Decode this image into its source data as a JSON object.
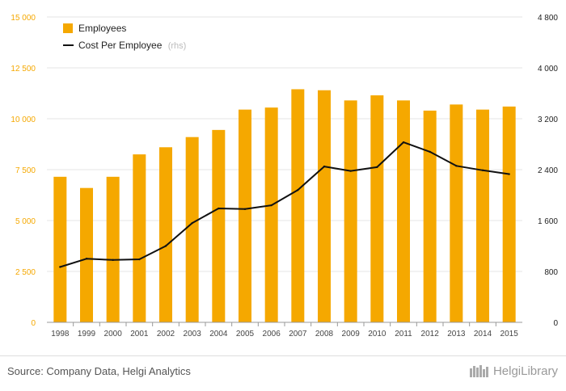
{
  "chart_data": {
    "type": "bar",
    "categories": [
      "1998",
      "1999",
      "2000",
      "2001",
      "2002",
      "2003",
      "2004",
      "2005",
      "2006",
      "2007",
      "2008",
      "2009",
      "2010",
      "2011",
      "2012",
      "2013",
      "2014",
      "2015"
    ],
    "series": [
      {
        "name": "Employees",
        "type": "bar",
        "axis": "left",
        "color": "#f5a800",
        "values": [
          7150,
          6600,
          7150,
          8250,
          8600,
          9100,
          9450,
          10450,
          10550,
          11450,
          11400,
          10900,
          11150,
          10900,
          10400,
          10700,
          10450,
          10600
        ]
      },
      {
        "name": "Cost Per Employee",
        "type": "line",
        "axis": "right",
        "color": "#111111",
        "values": [
          870,
          1000,
          980,
          990,
          1200,
          1560,
          1790,
          1780,
          1840,
          2080,
          2450,
          2380,
          2440,
          2830,
          2680,
          2460,
          2390,
          2330
        ]
      }
    ],
    "legend_suffix": "(rhs)",
    "left_axis": {
      "min": 0,
      "max": 15000,
      "ticks": [
        0,
        2500,
        5000,
        7500,
        10000,
        12500,
        15000
      ],
      "tick_labels": [
        "0",
        "2 500",
        "5 000",
        "7 500",
        "10 000",
        "12 500",
        "15 000"
      ]
    },
    "right_axis": {
      "min": 0,
      "max": 4800,
      "ticks": [
        0,
        800,
        1600,
        2400,
        3200,
        4000,
        4800
      ],
      "tick_labels": [
        "0",
        "800",
        "1 600",
        "2 400",
        "3 200",
        "4 000",
        "4 800"
      ]
    },
    "grid": true,
    "legend_placement": "top-left"
  },
  "footer": {
    "source": "Source: Company Data, Helgi Analytics",
    "brand": "HelgiLibrary"
  }
}
